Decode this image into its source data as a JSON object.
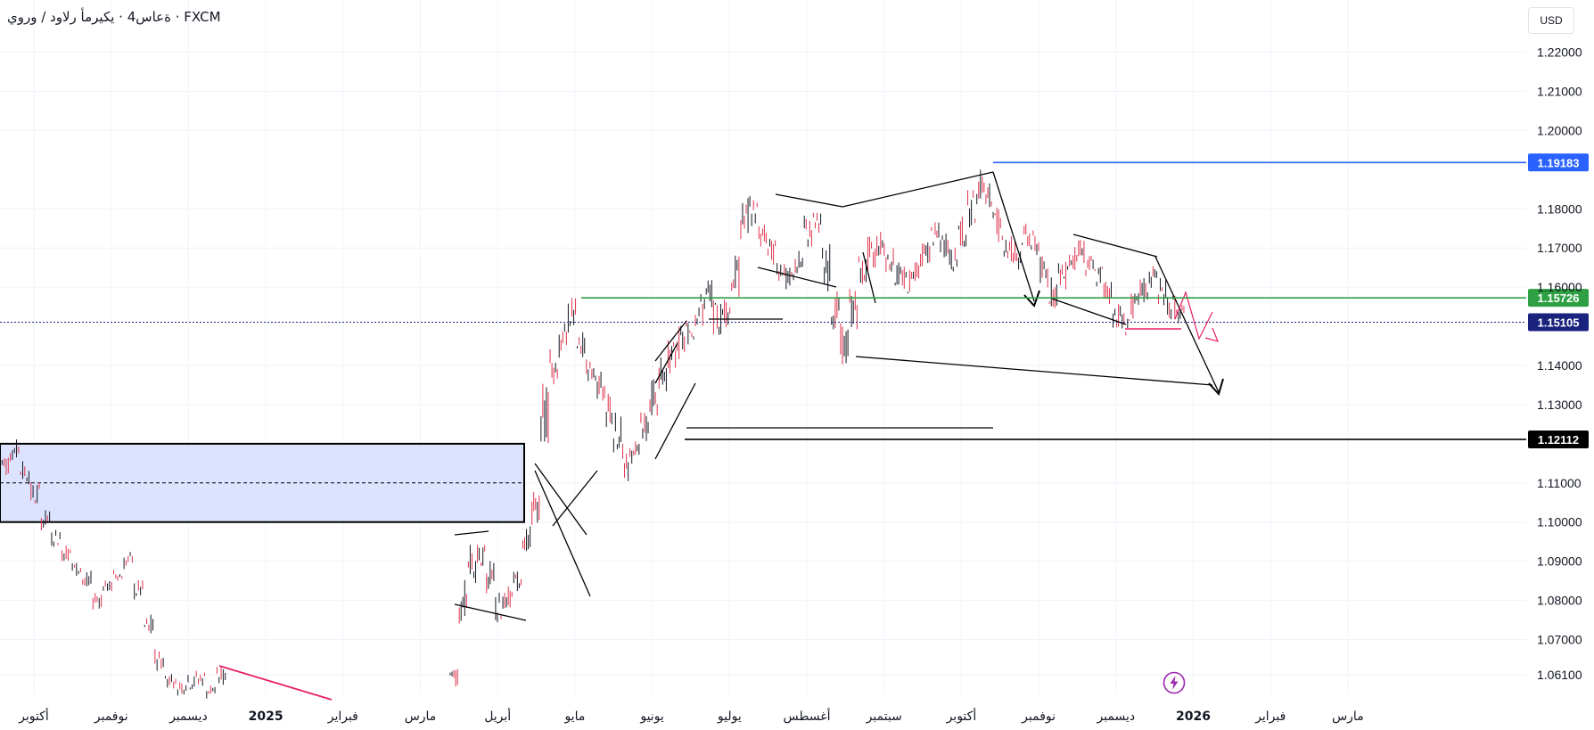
{
  "header": {
    "title": "ةعاس4 · يكيرمأ رلاود / وروي · FXCM",
    "currency_button": "USD"
  },
  "colors": {
    "grid": "#f0f3fa",
    "candle_up": "#131722",
    "candle_down": "#e0324b",
    "resistance": "#2962ff",
    "support_mid": "#2ea043",
    "support_low": "#000000",
    "current": "#1a237e",
    "trend_pink": "#e91e63",
    "zone_fill": "#dbe3ff"
  },
  "chart_data": {
    "type": "candlestick",
    "symbol": "EUR/USD",
    "timeframe": "4h",
    "currency": "USD",
    "ylim": [
      1.0535,
      1.2265
    ],
    "y_ticks": [
      "1.22000",
      "1.21000",
      "1.20000",
      "1.18000",
      "1.17000",
      "1.16000",
      "1.14000",
      "1.13000",
      "1.11000",
      "1.10000",
      "1.09000",
      "1.08000",
      "1.07000",
      "1.06100"
    ],
    "x_ticks": [
      "أكتوبر",
      "نوفمبر",
      "ديسمبر",
      "2025",
      "فبراير",
      "مارس",
      "أبريل",
      "مايو",
      "يونيو",
      "يوليو",
      "أغسطس",
      "سبتمبر",
      "أكتوبر",
      "نوفمبر",
      "ديسمبر",
      "2026",
      "فبراير",
      "مارس"
    ],
    "x_bold": [
      "2025",
      "2026"
    ],
    "price_lines": [
      {
        "name": "resistance",
        "label": "1.19183",
        "value": 1.19183,
        "color": "#2962ff"
      },
      {
        "name": "green-level",
        "label": "1.15726",
        "value": 1.15726,
        "color": "#2ea043"
      },
      {
        "name": "current-price",
        "label": "1.15105",
        "value": 1.15105,
        "color": "#1a237e",
        "dotted": true
      },
      {
        "name": "support",
        "label": "1.12112",
        "value": 1.12112,
        "color": "#000000"
      }
    ],
    "zone": {
      "top": 1.12,
      "bottom": 1.1,
      "mid": 1.11
    },
    "price_path": [
      [
        1.112,
        1.118
      ],
      [
        1.116,
        1.121
      ],
      [
        1.11,
        1.116
      ],
      [
        1.104,
        1.11
      ],
      [
        1.098,
        1.103
      ],
      [
        1.094,
        1.098
      ],
      [
        1.09,
        1.095
      ],
      [
        1.086,
        1.09
      ],
      [
        1.082,
        1.087
      ],
      [
        1.078,
        1.083
      ],
      [
        1.082,
        1.085
      ],
      [
        1.085,
        1.088
      ],
      [
        1.088,
        1.092
      ],
      [
        1.08,
        1.085
      ],
      [
        1.07,
        1.076
      ],
      [
        1.062,
        1.068
      ],
      [
        1.058,
        1.062
      ],
      [
        1.056,
        1.06
      ],
      [
        1.057,
        1.061
      ],
      [
        1.058,
        1.062
      ],
      [
        1.055,
        1.059
      ],
      [
        1.058,
        1.063
      ]
    ],
    "price_path2": [
      [
        1.058,
        1.064
      ],
      [
        1.075,
        1.085
      ],
      [
        1.085,
        1.095
      ],
      [
        1.088,
        1.094
      ],
      [
        1.082,
        1.09
      ],
      [
        1.075,
        1.082
      ],
      [
        1.078,
        1.085
      ],
      [
        1.082,
        1.088
      ],
      [
        1.09,
        1.098
      ],
      [
        1.1,
        1.11
      ],
      [
        1.118,
        1.135
      ],
      [
        1.135,
        1.145
      ],
      [
        1.142,
        1.15
      ],
      [
        1.148,
        1.157
      ],
      [
        1.14,
        1.148
      ],
      [
        1.136,
        1.142
      ],
      [
        1.132,
        1.14
      ],
      [
        1.125,
        1.135
      ],
      [
        1.118,
        1.128
      ],
      [
        1.11,
        1.12
      ],
      [
        1.115,
        1.122
      ],
      [
        1.12,
        1.128
      ],
      [
        1.128,
        1.136
      ],
      [
        1.134,
        1.142
      ],
      [
        1.138,
        1.146
      ],
      [
        1.142,
        1.15
      ],
      [
        1.146,
        1.152
      ],
      [
        1.15,
        1.158
      ],
      [
        1.152,
        1.162
      ],
      [
        1.148,
        1.156
      ],
      [
        1.15,
        1.158
      ],
      [
        1.158,
        1.168
      ],
      [
        1.172,
        1.182
      ],
      [
        1.176,
        1.183
      ],
      [
        1.17,
        1.176
      ],
      [
        1.166,
        1.172
      ],
      [
        1.162,
        1.168
      ],
      [
        1.158,
        1.165
      ],
      [
        1.162,
        1.17
      ],
      [
        1.17,
        1.178
      ],
      [
        1.174,
        1.179
      ],
      [
        1.16,
        1.17
      ],
      [
        1.15,
        1.158
      ],
      [
        1.14,
        1.15
      ],
      [
        1.15,
        1.16
      ],
      [
        1.16,
        1.168
      ],
      [
        1.164,
        1.172
      ],
      [
        1.168,
        1.174
      ],
      [
        1.164,
        1.17
      ],
      [
        1.16,
        1.166
      ],
      [
        1.158,
        1.165
      ],
      [
        1.162,
        1.168
      ],
      [
        1.166,
        1.172
      ],
      [
        1.17,
        1.176
      ],
      [
        1.168,
        1.174
      ],
      [
        1.164,
        1.17
      ],
      [
        1.17,
        1.178
      ],
      [
        1.176,
        1.184
      ],
      [
        1.182,
        1.19
      ],
      [
        1.178,
        1.186
      ],
      [
        1.172,
        1.18
      ],
      [
        1.166,
        1.174
      ],
      [
        1.164,
        1.172
      ],
      [
        1.17,
        1.176
      ],
      [
        1.168,
        1.174
      ],
      [
        1.16,
        1.168
      ],
      [
        1.155,
        1.162
      ],
      [
        1.16,
        1.166
      ],
      [
        1.164,
        1.17
      ],
      [
        1.166,
        1.172
      ],
      [
        1.162,
        1.168
      ],
      [
        1.16,
        1.166
      ],
      [
        1.156,
        1.162
      ],
      [
        1.15,
        1.156
      ],
      [
        1.148,
        1.154
      ],
      [
        1.152,
        1.158
      ],
      [
        1.156,
        1.162
      ],
      [
        1.16,
        1.165
      ],
      [
        1.156,
        1.162
      ],
      [
        1.152,
        1.158
      ],
      [
        1.15,
        1.155
      ]
    ]
  },
  "icons": {
    "lightning": "lightning-icon"
  }
}
